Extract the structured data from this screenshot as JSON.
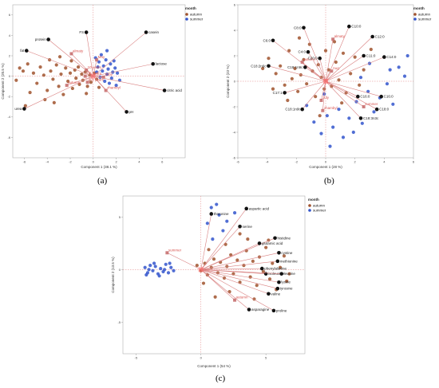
{
  "captions": [
    "(a)",
    "(b)",
    "(c)"
  ],
  "colors": {
    "autumn": "#a0522d",
    "summer": "#3355cc",
    "vector": "#d98080",
    "highlight": "#ff6666",
    "vectorTip": "#111111"
  },
  "chart_data": [
    {
      "type": "scatter",
      "xlabel": "Component 1  (38.1 %)",
      "ylabel": "Component 2  (20.5 %)",
      "xlim": [
        -7,
        8
      ],
      "ylim": [
        -8,
        7
      ],
      "xticks": [
        -6,
        -4,
        -2,
        0,
        2,
        4,
        6
      ],
      "yticks": [
        -6,
        -4,
        -2,
        0,
        2,
        4,
        6
      ],
      "legend": {
        "title": "month",
        "position": "top-right",
        "items": [
          "autumn",
          "summer"
        ]
      },
      "loadings": [
        {
          "label": "fat",
          "x": -5.8,
          "y": 2.5
        },
        {
          "label": "protein",
          "x": -3.9,
          "y": 3.6
        },
        {
          "label": "FS",
          "x": -0.6,
          "y": 4.3
        },
        {
          "label": "casein",
          "x": 4.6,
          "y": 4.3
        },
        {
          "label": "lactose",
          "x": 5.2,
          "y": 1.2
        },
        {
          "label": "citric acid",
          "x": 6.2,
          "y": -1.4
        },
        {
          "label": "pH",
          "x": 2.9,
          "y": -3.5
        },
        {
          "label": "urea",
          "x": -6.0,
          "y": -3.2
        }
      ],
      "predictors": [
        {
          "label": "almaty",
          "x": -1.9,
          "y": 2.2
        },
        {
          "label": "10 years",
          "x": -0.6,
          "y": 0.6
        },
        {
          "label": "1-5 years",
          "x": -0.7,
          "y": 0.0
        },
        {
          "label": "6-9 years",
          "x": -0.5,
          "y": -0.6
        },
        {
          "label": "autumn",
          "x": -2.3,
          "y": -0.9
        },
        {
          "label": "May",
          "x": 0.3,
          "y": 1.6
        },
        {
          "label": "June",
          "x": 0.9,
          "y": -0.1
        },
        {
          "label": "zhambyl",
          "x": 1.1,
          "y": -1.4
        }
      ],
      "scores": {
        "autumn": [
          [
            -6.4,
            0.8
          ],
          [
            -6.1,
            0.5
          ],
          [
            -5.7,
            1.2
          ],
          [
            -5.2,
            0.3
          ],
          [
            -4.9,
            -0.7
          ],
          [
            -4.6,
            0.9
          ],
          [
            -4.3,
            0.1
          ],
          [
            -4.0,
            -1.4
          ],
          [
            -3.7,
            0.5
          ],
          [
            -3.5,
            -0.3
          ],
          [
            -3.2,
            1.1
          ],
          [
            -3.0,
            -1.0
          ],
          [
            -2.8,
            0.2
          ],
          [
            -2.6,
            -1.8
          ],
          [
            -2.4,
            0.8
          ],
          [
            -2.2,
            -0.5
          ],
          [
            -2.0,
            0.3
          ],
          [
            -1.8,
            -1.2
          ],
          [
            -1.6,
            0.6
          ],
          [
            -1.5,
            -0.2
          ],
          [
            -1.3,
            0.9
          ],
          [
            -1.2,
            -0.8
          ],
          [
            -1.0,
            0.2
          ],
          [
            -0.9,
            -0.4
          ],
          [
            -0.7,
            0.4
          ],
          [
            -0.5,
            -1.0
          ],
          [
            -0.3,
            0.1
          ],
          [
            -0.2,
            -0.6
          ],
          [
            0.1,
            0.3
          ],
          [
            0.3,
            -0.3
          ],
          [
            -5.5,
            -1.6
          ],
          [
            -4.2,
            -2.3
          ],
          [
            -3.4,
            -2.6
          ],
          [
            -2.9,
            1.9
          ],
          [
            -1.9,
            1.5
          ],
          [
            -0.6,
            -1.7
          ],
          [
            0.5,
            -1.1
          ],
          [
            -6.7,
            -0.4
          ],
          [
            -5.9,
            -2.9
          ],
          [
            -3.8,
            1.6
          ]
        ],
        "summer": [
          [
            0.2,
            1.8
          ],
          [
            0.5,
            1.4
          ],
          [
            0.7,
            2.1
          ],
          [
            0.9,
            1.0
          ],
          [
            1.1,
            1.6
          ],
          [
            1.3,
            0.7
          ],
          [
            1.5,
            1.2
          ],
          [
            1.7,
            0.4
          ],
          [
            0.4,
            0.9
          ],
          [
            0.8,
            0.5
          ],
          [
            1.2,
            0.2
          ],
          [
            1.6,
            -0.2
          ],
          [
            1.9,
            0.8
          ],
          [
            2.1,
            0.3
          ],
          [
            1.0,
            -0.5
          ],
          [
            0.6,
            -0.1
          ],
          [
            1.4,
            -0.7
          ],
          [
            2.3,
            -0.4
          ],
          [
            0.3,
            0.4
          ],
          [
            1.8,
            1.5
          ],
          [
            2.0,
            -0.9
          ],
          [
            1.2,
            2.5
          ]
        ]
      }
    },
    {
      "type": "scatter",
      "xlabel": "Component 1  (28 %)",
      "ylabel": "Component 2  (23 %)",
      "xlim": [
        -6,
        6
      ],
      "ylim": [
        -6,
        6
      ],
      "xticks": [
        -6,
        -4,
        -2,
        0,
        2,
        4,
        6
      ],
      "yticks": [
        -6,
        -4,
        -2,
        0,
        2,
        4,
        6
      ],
      "legend": {
        "title": "month",
        "position": "top-right",
        "items": [
          "autumn",
          "summer"
        ]
      },
      "loadings": [
        {
          "label": "C8:0",
          "x": -1.5,
          "y": 4.2
        },
        {
          "label": "C10:0",
          "x": 1.6,
          "y": 4.3
        },
        {
          "label": "C6:0",
          "x": -3.6,
          "y": 3.2
        },
        {
          "label": "C12:0",
          "x": 3.2,
          "y": 3.5
        },
        {
          "label": "C4:0",
          "x": -1.2,
          "y": 2.3
        },
        {
          "label": "C11:0",
          "x": 2.6,
          "y": 2.0
        },
        {
          "label": "C14:0",
          "x": 4.0,
          "y": 1.9
        },
        {
          "label": "C18:2n6c",
          "x": -3.9,
          "y": 1.2
        },
        {
          "label": "C18:1n9c",
          "x": -1.4,
          "y": 1.1
        },
        {
          "label": "C20:0",
          "x": -0.4,
          "y": 1.8
        },
        {
          "label": "C17:1",
          "x": -2.8,
          "y": -0.9
        },
        {
          "label": "C18:1n9t",
          "x": -1.6,
          "y": -2.2
        },
        {
          "label": "C16:0",
          "x": 2.2,
          "y": -1.2
        },
        {
          "label": "C18:0",
          "x": 3.5,
          "y": -2.2
        },
        {
          "label": "C18:3n3c",
          "x": 2.4,
          "y": -2.9
        },
        {
          "label": "C16:0",
          "x": 3.8,
          "y": -1.2
        }
      ],
      "predictors": [
        {
          "label": "almaty",
          "x": 0.5,
          "y": 3.3
        },
        {
          "label": "autumn",
          "x": -1.6,
          "y": 1.5
        },
        {
          "label": "Aug",
          "x": 0.4,
          "y": 0.8
        },
        {
          "label": "July",
          "x": -0.3,
          "y": -1.5
        },
        {
          "label": "zhambyl",
          "x": -0.2,
          "y": -2.3
        },
        {
          "label": "summer",
          "x": 2.6,
          "y": -2.0
        }
      ],
      "scores": {
        "autumn": [
          [
            -3.9,
            1.8
          ],
          [
            -3.4,
            0.6
          ],
          [
            -3.1,
            1.2
          ],
          [
            -2.8,
            -0.3
          ],
          [
            -2.5,
            2.4
          ],
          [
            -2.3,
            0.2
          ],
          [
            -2.1,
            1.0
          ],
          [
            -1.9,
            -0.8
          ],
          [
            -1.7,
            0.5
          ],
          [
            -1.5,
            1.7
          ],
          [
            -1.3,
            -0.2
          ],
          [
            -1.1,
            2.9
          ],
          [
            -0.9,
            0.8
          ],
          [
            -0.7,
            -1.2
          ],
          [
            -0.5,
            1.3
          ],
          [
            -0.3,
            0.3
          ],
          [
            -0.1,
            -0.6
          ],
          [
            0.2,
            0.9
          ],
          [
            0.4,
            -0.4
          ],
          [
            0.7,
            1.5
          ],
          [
            0.9,
            0.1
          ],
          [
            1.2,
            2.2
          ],
          [
            1.4,
            -0.9
          ],
          [
            1.7,
            0.6
          ],
          [
            2.0,
            1.9
          ],
          [
            2.3,
            -0.3
          ],
          [
            2.6,
            0.9
          ],
          [
            -3.6,
            -0.6
          ],
          [
            -2.6,
            -1.5
          ],
          [
            -0.4,
            -2.7
          ],
          [
            1.1,
            -1.7
          ],
          [
            0.6,
            3.1
          ],
          [
            -1.8,
            3.4
          ],
          [
            3.1,
            2.5
          ],
          [
            -4.3,
            1.0
          ],
          [
            0.0,
            2.4
          ]
        ],
        "summer": [
          [
            -0.8,
            -3.2
          ],
          [
            -0.3,
            -4.1
          ],
          [
            0.1,
            -2.7
          ],
          [
            0.5,
            -3.6
          ],
          [
            0.9,
            -2.2
          ],
          [
            1.2,
            -4.4
          ],
          [
            1.6,
            -2.9
          ],
          [
            2.1,
            -1.6
          ],
          [
            2.5,
            -3.3
          ],
          [
            2.9,
            -0.8
          ],
          [
            3.3,
            -2.4
          ],
          [
            3.7,
            -1.3
          ],
          [
            4.2,
            -0.2
          ],
          [
            4.6,
            -1.8
          ],
          [
            5.0,
            1.1
          ],
          [
            5.4,
            0.4
          ],
          [
            -1.3,
            -1.9
          ],
          [
            0.3,
            -5.1
          ],
          [
            1.9,
            -4.0
          ],
          [
            3.0,
            1.4
          ],
          [
            4.4,
            0.9
          ],
          [
            -0.1,
            -1.0
          ],
          [
            2.4,
            0.3
          ],
          [
            5.6,
            2.0
          ]
        ]
      }
    },
    {
      "type": "scatter",
      "xlabel": "Component 1  (54 %)",
      "ylabel": "Component 2  (13.5 %)",
      "xlim": [
        -6,
        8
      ],
      "ylim": [
        -8,
        7
      ],
      "xticks": [
        -5,
        0,
        5
      ],
      "yticks": [
        -5,
        0,
        5
      ],
      "legend": {
        "title": "month",
        "position": "top-right",
        "items": [
          "autumn",
          "summer"
        ]
      },
      "loadings": [
        {
          "label": "aspartic acid",
          "x": 3.5,
          "y": 5.8
        },
        {
          "label": "threonine",
          "x": 0.8,
          "y": 5.3
        },
        {
          "label": "serine",
          "x": 3.0,
          "y": 4.1
        },
        {
          "label": "histidine",
          "x": 5.7,
          "y": 3.0
        },
        {
          "label": "glutamic acid",
          "x": 4.5,
          "y": 2.5
        },
        {
          "label": "cystine",
          "x": 6.0,
          "y": 1.6
        },
        {
          "label": "methionine",
          "x": 5.9,
          "y": 0.8
        },
        {
          "label": "phenylalanine",
          "x": 4.7,
          "y": 0.1
        },
        {
          "label": "isoleucine",
          "x": 5.0,
          "y": -0.4
        },
        {
          "label": "leucine",
          "x": 6.2,
          "y": -0.4
        },
        {
          "label": "lysine",
          "x": 6.0,
          "y": -1.2
        },
        {
          "label": "tyrosine",
          "x": 5.9,
          "y": -1.8
        },
        {
          "label": "valine",
          "x": 5.2,
          "y": -2.3
        },
        {
          "label": "asparagine",
          "x": 3.7,
          "y": -3.8
        },
        {
          "label": "proline",
          "x": 5.6,
          "y": -3.9
        }
      ],
      "predictors": [
        {
          "label": "summer",
          "x": -2.6,
          "y": 1.6
        },
        {
          "label": "autumn",
          "x": 2.6,
          "y": -2.9
        }
      ],
      "scores": {
        "summer": [
          [
            -4.3,
            0.2
          ],
          [
            -4.1,
            -0.3
          ],
          [
            -3.9,
            0.4
          ],
          [
            -3.7,
            -0.1
          ],
          [
            -3.5,
            0.3
          ],
          [
            -3.3,
            -0.4
          ],
          [
            -3.1,
            0.1
          ],
          [
            -2.9,
            -0.2
          ],
          [
            -2.7,
            0.5
          ],
          [
            -2.5,
            -0.3
          ],
          [
            -2.3,
            0.2
          ],
          [
            -2.1,
            -0.1
          ],
          [
            -4.0,
            0.0
          ],
          [
            -3.6,
            0.6
          ],
          [
            -3.2,
            -0.6
          ],
          [
            -2.8,
            0.0
          ],
          [
            -2.4,
            0.6
          ],
          [
            -4.2,
            -0.5
          ],
          [
            0.8,
            5.9
          ],
          [
            1.4,
            5.2
          ],
          [
            2.0,
            4.6
          ],
          [
            0.5,
            4.4
          ],
          [
            1.7,
            3.7
          ],
          [
            0.9,
            2.9
          ],
          [
            2.6,
            5.4
          ],
          [
            1.2,
            6.2
          ]
        ],
        "autumn": [
          [
            -0.3,
            0.4
          ],
          [
            0.0,
            -0.1
          ],
          [
            0.3,
            0.6
          ],
          [
            0.5,
            -0.5
          ],
          [
            0.8,
            0.2
          ],
          [
            1.0,
            1.0
          ],
          [
            1.3,
            -0.3
          ],
          [
            1.5,
            0.7
          ],
          [
            1.8,
            -0.8
          ],
          [
            2.0,
            0.3
          ],
          [
            2.3,
            1.4
          ],
          [
            2.5,
            -0.4
          ],
          [
            2.8,
            0.9
          ],
          [
            3.0,
            -1.2
          ],
          [
            3.3,
            0.4
          ],
          [
            3.5,
            1.8
          ],
          [
            3.8,
            -0.7
          ],
          [
            4.0,
            0.8
          ],
          [
            4.3,
            -1.5
          ],
          [
            4.5,
            1.2
          ],
          [
            4.8,
            -0.2
          ],
          [
            5.0,
            2.1
          ],
          [
            5.3,
            -0.9
          ],
          [
            5.5,
            0.6
          ],
          [
            5.8,
            -1.9
          ],
          [
            6.1,
            0.2
          ],
          [
            6.4,
            1.3
          ],
          [
            6.6,
            -1.1
          ],
          [
            0.6,
            1.9
          ],
          [
            1.9,
            2.4
          ],
          [
            3.6,
            2.9
          ],
          [
            2.2,
            -2.1
          ],
          [
            4.1,
            -2.8
          ],
          [
            0.2,
            -1.3
          ],
          [
            5.2,
            2.8
          ],
          [
            6.8,
            -0.4
          ],
          [
            1.1,
            -2.6
          ],
          [
            3.0,
            3.4
          ]
        ]
      }
    }
  ]
}
